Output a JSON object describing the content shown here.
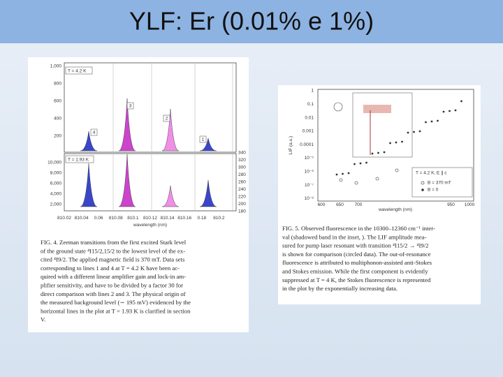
{
  "header": {
    "title": "YLF: Er (0.01% e 1%)"
  },
  "figure_left": {
    "panel_top_label": "T = 4.2 K",
    "panel_bottom_label": "T = 1.93 K",
    "yticks_top": [
      "1,000",
      "800",
      "600",
      "400",
      "200"
    ],
    "yticks_bottom": [
      "10,000",
      "8,000",
      "6,000",
      "4,000",
      "2,000"
    ],
    "yticks_right": [
      "340",
      "320",
      "300",
      "280",
      "260",
      "240",
      "220",
      "200",
      "180"
    ],
    "xticks": [
      "810.02",
      "810.04",
      "0.06",
      "810.08",
      "810.1",
      "810.12",
      "810.14",
      "810.16",
      "0.18",
      "810.2"
    ],
    "xlabel": "wavelength (nm)",
    "line_labels": [
      "4",
      "3",
      "2",
      "1"
    ],
    "caption": [
      "FIG. 4. Zeeman transitions from the first excited Stark level",
      "of the ground state ⁴I15/2,15/2 to the lowest level of the ex-",
      "cited ⁴I9/2. The applied magnetic field is 370 mT. Data sets",
      "corresponding to lines 1 and 4 at T = 4.2 K have been ac-",
      "quired with a different linear amplifier gain and lock-in am-",
      "plifier sensitivity, and have to be divided by a factor 30 for",
      "direct comparison with lines 2 and 3. The physical origin of",
      "the measured background level (∼ 195 mV) evidenced by the",
      "horizontal lines in the plot at T = 1.93 K is clarified in section",
      "V."
    ]
  },
  "figure_right": {
    "yticks": [
      "1",
      "0.1",
      "0.01",
      "0.001",
      "0.0001",
      "10⁻⁵",
      "10⁻⁶",
      "10⁻⁷",
      "10⁻⁸"
    ],
    "xticks": [
      "600",
      "650",
      "700",
      "950",
      "1000"
    ],
    "xlabel": "wavelength (nm)",
    "ylabel": "LIF (a.u.)",
    "legend": [
      "T = 4.2 K, E ∥ c",
      "B = 370 mT",
      "B = 0"
    ],
    "caption": [
      "FIG. 5. Observed fluorescence in the 10300–12360 cm⁻¹ inter-",
      "val (shadowed band in the inset, ). The LIF amplitude mea-",
      "sured for pump laser resonant with transition ⁴I15/2 → ⁴I9/2",
      "is shown for comparison (circled data). The out-of-resonance",
      "fluorescence is attributed to multiphonon-assisted anti-Stokes",
      "and Stokes emission. While the first component is evidently",
      "suppressed at T = 4 K, the Stokes fluorescence is represented",
      "in the plot by the exponentially increasing data."
    ]
  }
}
